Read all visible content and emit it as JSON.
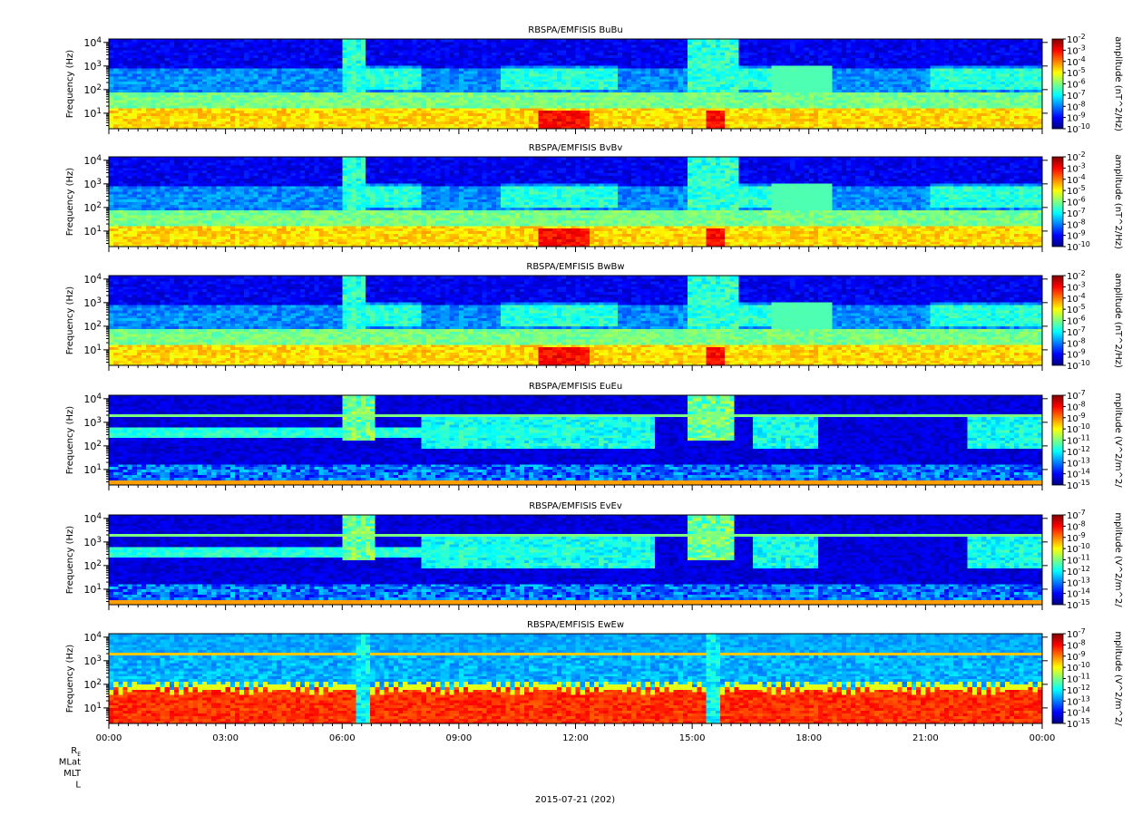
{
  "figure": {
    "date_label": "2015-07-21 (202)",
    "ephemeris_labels": [
      "R",
      "MLat",
      "MLT",
      "L"
    ],
    "ephemeris_subscript": "E",
    "x_ticks": [
      "00:00",
      "03:00",
      "06:00",
      "09:00",
      "12:00",
      "15:00",
      "18:00",
      "21:00",
      "00:00"
    ]
  },
  "colors": {
    "colormap": [
      "#00007f",
      "#0000ff",
      "#007fff",
      "#00ffff",
      "#7fff7f",
      "#ffff00",
      "#ff7f00",
      "#ff0000",
      "#7f0000"
    ]
  },
  "chart_data": [
    {
      "type": "heatmap",
      "title": "RBSPA/EMFISIS  BuBu",
      "ylabel": "Frequency (Hz)",
      "colorbar_label": "amplitude (nT^2/Hz)",
      "x_range": [
        "00:00",
        "00:00"
      ],
      "y_scale": "log",
      "y_ticks": [
        "10^1",
        "10^2",
        "10^3",
        "10^4"
      ],
      "colorbar_ticks": [
        "10^-2",
        "10^-3",
        "10^-4",
        "10^-5",
        "10^-6",
        "10^-7",
        "10^-8",
        "10^-9",
        "10^-10"
      ]
    },
    {
      "type": "heatmap",
      "title": "RBSPA/EMFISIS  BvBv",
      "ylabel": "Frequency (Hz)",
      "colorbar_label": "amplitude (nT^2/Hz)",
      "x_range": [
        "00:00",
        "00:00"
      ],
      "y_scale": "log",
      "y_ticks": [
        "10^1",
        "10^2",
        "10^3",
        "10^4"
      ],
      "colorbar_ticks": [
        "10^-2",
        "10^-3",
        "10^-4",
        "10^-5",
        "10^-6",
        "10^-7",
        "10^-8",
        "10^-9",
        "10^-10"
      ]
    },
    {
      "type": "heatmap",
      "title": "RBSPA/EMFISIS  BwBw",
      "ylabel": "Frequency (Hz)",
      "colorbar_label": "amplitude (nT^2/Hz)",
      "x_range": [
        "00:00",
        "00:00"
      ],
      "y_scale": "log",
      "y_ticks": [
        "10^1",
        "10^2",
        "10^3",
        "10^4"
      ],
      "colorbar_ticks": [
        "10^-2",
        "10^-3",
        "10^-4",
        "10^-5",
        "10^-6",
        "10^-7",
        "10^-8",
        "10^-9",
        "10^-10"
      ]
    },
    {
      "type": "heatmap",
      "title": "RBSPA/EMFISIS  EuEu",
      "ylabel": "Frequency (Hz)",
      "colorbar_label": "mplitude (V^2/m^2/",
      "x_range": [
        "00:00",
        "00:00"
      ],
      "y_scale": "log",
      "y_ticks": [
        "10^1",
        "10^2",
        "10^3",
        "10^4"
      ],
      "colorbar_ticks": [
        "10^-7",
        "10^-8",
        "10^-9",
        "10^-10",
        "10^-11",
        "10^-12",
        "10^-13",
        "10^-14",
        "10^-15"
      ]
    },
    {
      "type": "heatmap",
      "title": "RBSPA/EMFISIS  EvEv",
      "ylabel": "Frequency (Hz)",
      "colorbar_label": "mplitude (V^2/m^2/",
      "x_range": [
        "00:00",
        "00:00"
      ],
      "y_scale": "log",
      "y_ticks": [
        "10^1",
        "10^2",
        "10^3",
        "10^4"
      ],
      "colorbar_ticks": [
        "10^-7",
        "10^-8",
        "10^-9",
        "10^-10",
        "10^-11",
        "10^-12",
        "10^-13",
        "10^-14",
        "10^-15"
      ]
    },
    {
      "type": "heatmap",
      "title": "RBSPA/EMFISIS  EwEw",
      "ylabel": "Frequency (Hz)",
      "colorbar_label": "mplitude (V^2/m^2/",
      "x_range": [
        "00:00",
        "00:00"
      ],
      "y_scale": "log",
      "y_ticks": [
        "10^1",
        "10^2",
        "10^3",
        "10^4"
      ],
      "colorbar_ticks": [
        "10^-7",
        "10^-8",
        "10^-9",
        "10^-10",
        "10^-11",
        "10^-12",
        "10^-13",
        "10^-14",
        "10^-15"
      ]
    }
  ]
}
